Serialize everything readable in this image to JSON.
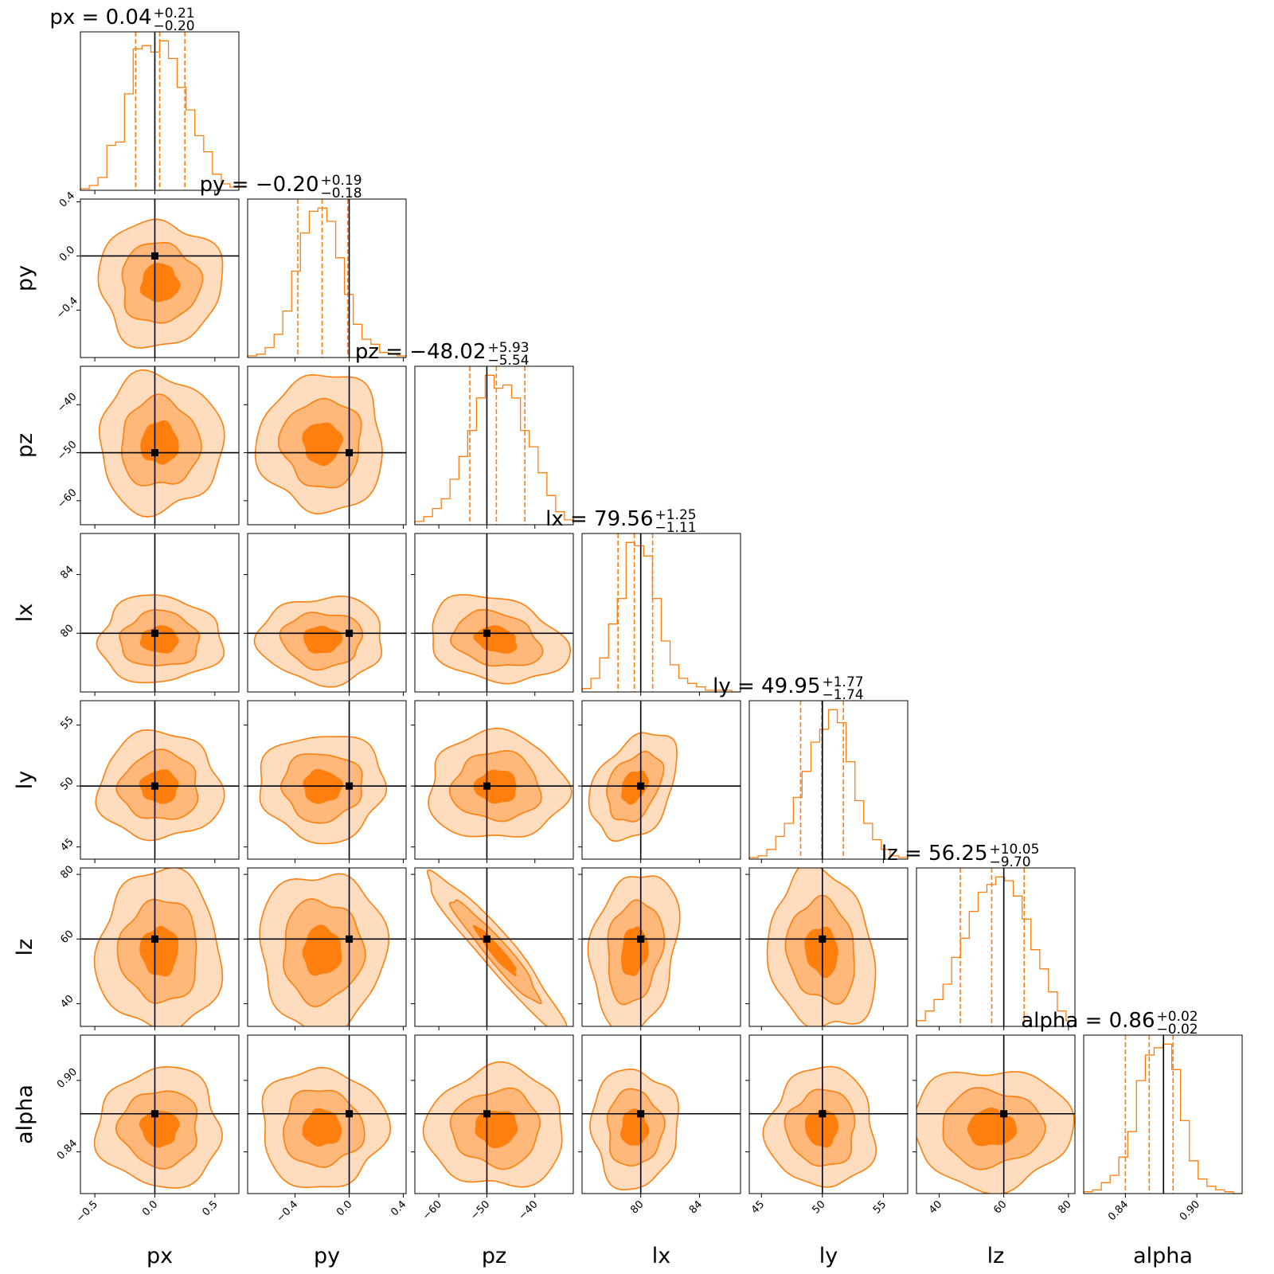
{
  "chart_data": {
    "type": "corner",
    "colors": {
      "fill_inner": "#ff7f0e",
      "fill_mid": "#ffb87a",
      "fill_outer": "#ffdcbd",
      "line": "#ff7f0e",
      "truth": "#000000"
    },
    "parameters": [
      {
        "name": "px",
        "label": "px",
        "range": [
          -0.62,
          0.7
        ],
        "ticks": [
          -0.5,
          0.0,
          0.5
        ],
        "tick_labels": [
          "−0.5",
          "0.0",
          "0.5"
        ],
        "truth": 0.0,
        "median": 0.04,
        "q16": -0.16,
        "q84": 0.25,
        "title": {
          "prefix": "px = 0.04",
          "plus": "+0.21",
          "minus": "−0.20"
        },
        "hist": [
          1,
          3,
          8,
          28,
          30,
          60,
          88,
          90,
          86,
          93,
          82,
          64,
          50,
          34,
          24,
          10,
          4,
          2
        ]
      },
      {
        "name": "py",
        "label": "py",
        "range": [
          -0.75,
          0.42
        ],
        "ticks": [
          -0.4,
          0.0,
          0.4
        ],
        "tick_labels": [
          "−0.4",
          "0.0",
          "0.4"
        ],
        "truth": 0.0,
        "median": -0.2,
        "q16": -0.38,
        "q84": -0.01,
        "title": {
          "prefix": "py = −0.20",
          "plus": "+0.19",
          "minus": "−0.18"
        },
        "hist": [
          1,
          2,
          6,
          14,
          28,
          52,
          75,
          88,
          90,
          82,
          60,
          38,
          20,
          11,
          8,
          3,
          2,
          1
        ]
      },
      {
        "name": "pz",
        "label": "pz",
        "range": [
          -65,
          -32
        ],
        "ticks": [
          -60,
          -50,
          -40
        ],
        "tick_labels": [
          "−60",
          "−50",
          "−40"
        ],
        "truth": -50,
        "median": -48.02,
        "q16": -53.56,
        "q84": -42.09,
        "title": {
          "prefix": "pz = −48.02",
          "plus": "+5.93",
          "minus": "−5.54"
        },
        "hist": [
          2,
          5,
          10,
          16,
          28,
          42,
          58,
          78,
          92,
          84,
          86,
          78,
          58,
          48,
          32,
          18,
          8,
          3
        ]
      },
      {
        "name": "lx",
        "label": "lx",
        "range": [
          76,
          86.8
        ],
        "ticks": [
          80,
          84
        ],
        "tick_labels": [
          "80",
          "84"
        ],
        "truth": 80,
        "median": 79.56,
        "q16": 78.45,
        "q84": 80.81,
        "title": {
          "prefix": "lx = 79.56",
          "plus": "+1.25",
          "minus": "−1.11"
        },
        "hist": [
          2,
          8,
          20,
          40,
          55,
          88,
          86,
          80,
          55,
          30,
          16,
          8,
          5,
          3,
          1,
          1,
          1,
          0
        ]
      },
      {
        "name": "ly",
        "label": "ly",
        "range": [
          44,
          57
        ],
        "ticks": [
          45,
          50,
          55
        ],
        "tick_labels": [
          "45",
          "50",
          "55"
        ],
        "truth": 50,
        "median": 49.95,
        "q16": 48.21,
        "q84": 51.72,
        "title": {
          "prefix": "ly = 49.95",
          "plus": "+1.77",
          "minus": "−1.74"
        },
        "hist": [
          1,
          2,
          6,
          14,
          22,
          38,
          54,
          72,
          80,
          92,
          84,
          60,
          36,
          22,
          12,
          6,
          2,
          1
        ]
      },
      {
        "name": "lz",
        "label": "lz",
        "range": [
          33,
          82
        ],
        "ticks": [
          40,
          60,
          80
        ],
        "tick_labels": [
          "40",
          "60",
          "80"
        ],
        "truth": 60,
        "median": 56.25,
        "q16": 46.55,
        "q84": 66.3,
        "title": {
          "prefix": "lz = 56.25",
          "plus": "+10.05",
          "minus": "−9.70"
        },
        "hist": [
          3,
          8,
          14,
          22,
          36,
          46,
          60,
          70,
          74,
          78,
          76,
          68,
          56,
          40,
          30,
          18,
          8,
          3
        ]
      },
      {
        "name": "alpha",
        "label": "alpha",
        "range": [
          0.805,
          0.938
        ],
        "ticks": [
          0.84,
          0.9
        ],
        "tick_labels": [
          "0.84",
          "0.90"
        ],
        "truth": 0.872,
        "median": 0.86,
        "q16": 0.84,
        "q84": 0.88,
        "title": {
          "prefix": "alpha = 0.86",
          "plus": "+0.02",
          "minus": "−0.02"
        },
        "hist": [
          1,
          2,
          6,
          10,
          20,
          34,
          62,
          76,
          80,
          82,
          68,
          40,
          18,
          8,
          4,
          2,
          1,
          0
        ]
      }
    ],
    "correlations": {
      "pz|lz": -0.95,
      "lx|ly": 0.35,
      "pz|lx": -0.25,
      "lx|lz": 0.2,
      "ly|lz": -0.15
    }
  }
}
